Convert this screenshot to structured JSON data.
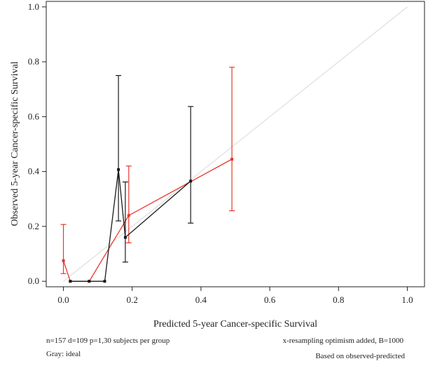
{
  "chart_data": {
    "type": "line",
    "title": "",
    "xlabel": "Predicted 5-year Cancer-specific Survival",
    "ylabel": "Observed 5-year Cancer-specific Survival",
    "xlim": [
      -0.05,
      1.05
    ],
    "ylim": [
      -0.02,
      1.02
    ],
    "x_ticks": [
      0.0,
      0.2,
      0.4,
      0.6,
      0.8,
      1.0
    ],
    "x_tick_labels": [
      "0.0",
      "0.2",
      "0.4",
      "0.6",
      "0.8",
      "1.0"
    ],
    "y_ticks": [
      0.0,
      0.2,
      0.4,
      0.6,
      0.8,
      1.0
    ],
    "y_tick_labels": [
      "0.0",
      "0.2",
      "0.4",
      "0.6",
      "0.8",
      "1.0"
    ],
    "grid": false,
    "ideal_line": {
      "from": [
        0,
        0
      ],
      "to": [
        1,
        1
      ],
      "color": "#d9d9d9"
    },
    "series": [
      {
        "color": "#e8372c",
        "points": [
          {
            "x": 0.0,
            "y": 0.075,
            "lo": 0.028,
            "hi": 0.207
          },
          {
            "x": 0.02,
            "y": 0.0
          },
          {
            "x": 0.075,
            "y": 0.0
          },
          {
            "x": 0.19,
            "y": 0.24,
            "lo": 0.14,
            "hi": 0.42
          },
          {
            "x": 0.49,
            "y": 0.445,
            "lo": 0.257,
            "hi": 0.78
          }
        ]
      },
      {
        "color": "#1a1a1a",
        "points": [
          {
            "x": 0.02,
            "y": 0.0
          },
          {
            "x": 0.075,
            "y": 0.0
          },
          {
            "x": 0.12,
            "y": 0.0
          },
          {
            "x": 0.16,
            "y": 0.407,
            "lo": 0.22,
            "hi": 0.75
          },
          {
            "x": 0.18,
            "y": 0.16,
            "lo": 0.07,
            "hi": 0.362
          },
          {
            "x": 0.37,
            "y": 0.365,
            "lo": 0.212,
            "hi": 0.637
          }
        ]
      }
    ],
    "footnotes": {
      "left_line1": "n=157 d=109 p=1,30 subjects per group",
      "left_line2": "Gray: ideal",
      "right_line1": "x-resampling optimism added, B=1000",
      "right_line2": "Based on observed-predicted"
    }
  }
}
